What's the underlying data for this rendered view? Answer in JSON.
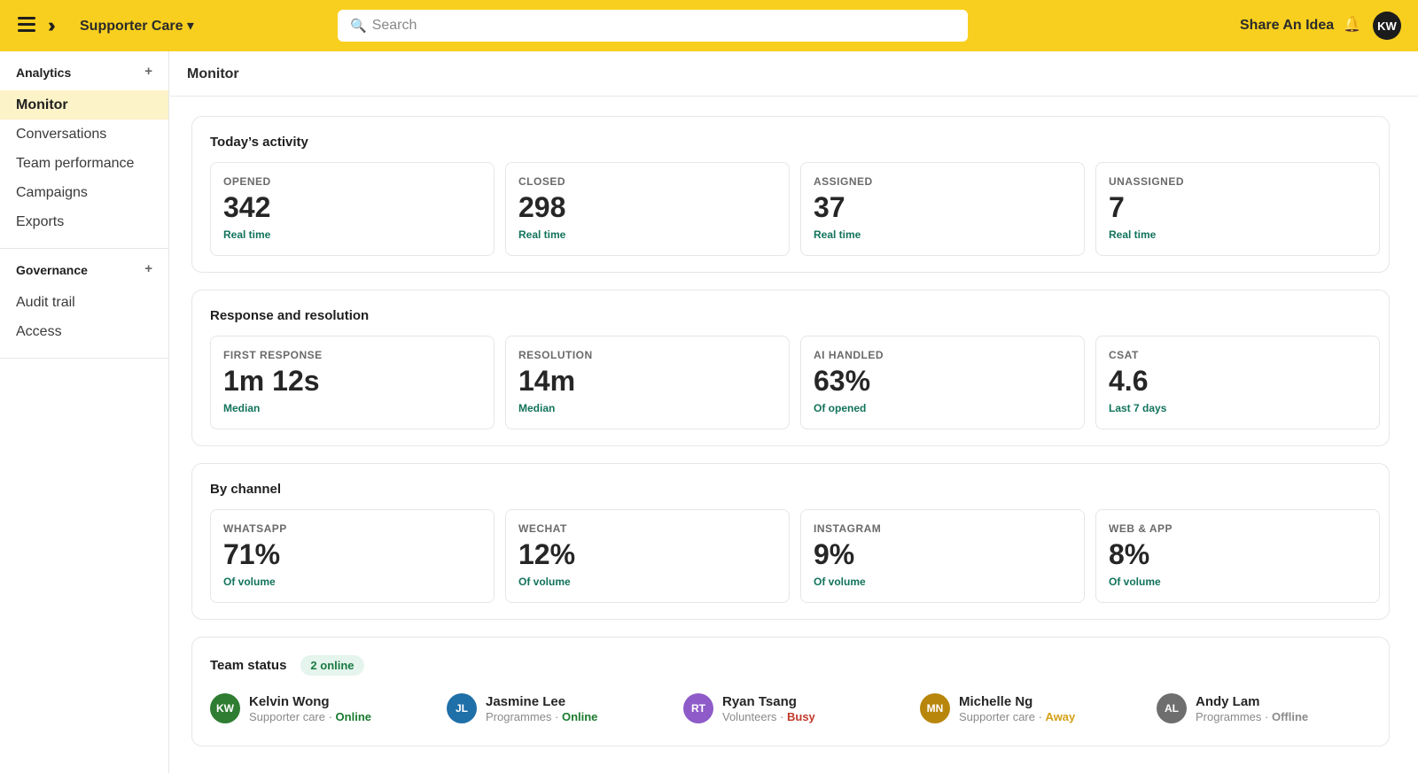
{
  "topbar": {
    "workspace": "Supporter Care ▾",
    "search_placeholder": "Search",
    "share_label": "Share An Idea",
    "user_initials": "KW"
  },
  "sidebar": {
    "sections": [
      {
        "title": "Analytics",
        "items": [
          "Monitor",
          "Conversations",
          "Team performance",
          "Campaigns",
          "Exports"
        ]
      },
      {
        "title": "Governance",
        "items": [
          "Audit trail",
          "Access"
        ]
      }
    ],
    "plus": "+"
  },
  "page": {
    "title": "Monitor"
  },
  "today": {
    "title": "Today’s activity",
    "cards": [
      {
        "label": "OPENED",
        "value": "342",
        "sub": "Real time"
      },
      {
        "label": "CLOSED",
        "value": "298",
        "sub": "Real time"
      },
      {
        "label": "ASSIGNED",
        "value": "37",
        "sub": "Real time"
      },
      {
        "label": "UNASSIGNED",
        "value": "7",
        "sub": "Real time"
      }
    ]
  },
  "response": {
    "title": "Response and resolution",
    "cards": [
      {
        "label": "FIRST RESPONSE",
        "value": "1m 12s",
        "sub": "Median"
      },
      {
        "label": "RESOLUTION",
        "value": "14m",
        "sub": "Median"
      },
      {
        "label": "AI HANDLED",
        "value": "63%",
        "sub": "Of opened"
      },
      {
        "label": "CSAT",
        "value": "4.6",
        "sub": "Last 7 days"
      }
    ]
  },
  "channel": {
    "title": "By channel",
    "cards": [
      {
        "label": "WHATSAPP",
        "value": "71%",
        "sub": "Of volume"
      },
      {
        "label": "WECHAT",
        "value": "12%",
        "sub": "Of volume"
      },
      {
        "label": "INSTAGRAM",
        "value": "9%",
        "sub": "Of volume"
      },
      {
        "label": "WEB & APP",
        "value": "8%",
        "sub": "Of volume"
      }
    ]
  },
  "team": {
    "title": "Team status",
    "badge": "2 online",
    "members": [
      {
        "initials": "KW",
        "name": "Kelvin Wong",
        "team": "Supporter care · ",
        "status": "Online",
        "avatar_color": "#2e7d32",
        "status_color": "#1a7a2e"
      },
      {
        "initials": "JL",
        "name": "Jasmine Lee",
        "team": "Programmes · ",
        "status": "Online",
        "avatar_color": "#1f6fa8",
        "status_color": "#1a7a2e"
      },
      {
        "initials": "RT",
        "name": "Ryan Tsang",
        "team": "Volunteers · ",
        "status": "Busy",
        "avatar_color": "#8e5bc9",
        "status_color": "#c0392b"
      },
      {
        "initials": "MN",
        "name": "Michelle Ng",
        "team": "Supporter care · ",
        "status": "Away",
        "avatar_color": "#b8860b",
        "status_color": "#d4a017"
      },
      {
        "initials": "AL",
        "name": "Andy Lam",
        "team": "Programmes · ",
        "status": "Offline",
        "avatar_color": "#6e6e6e",
        "status_color": "#8a8a8a"
      }
    ]
  }
}
